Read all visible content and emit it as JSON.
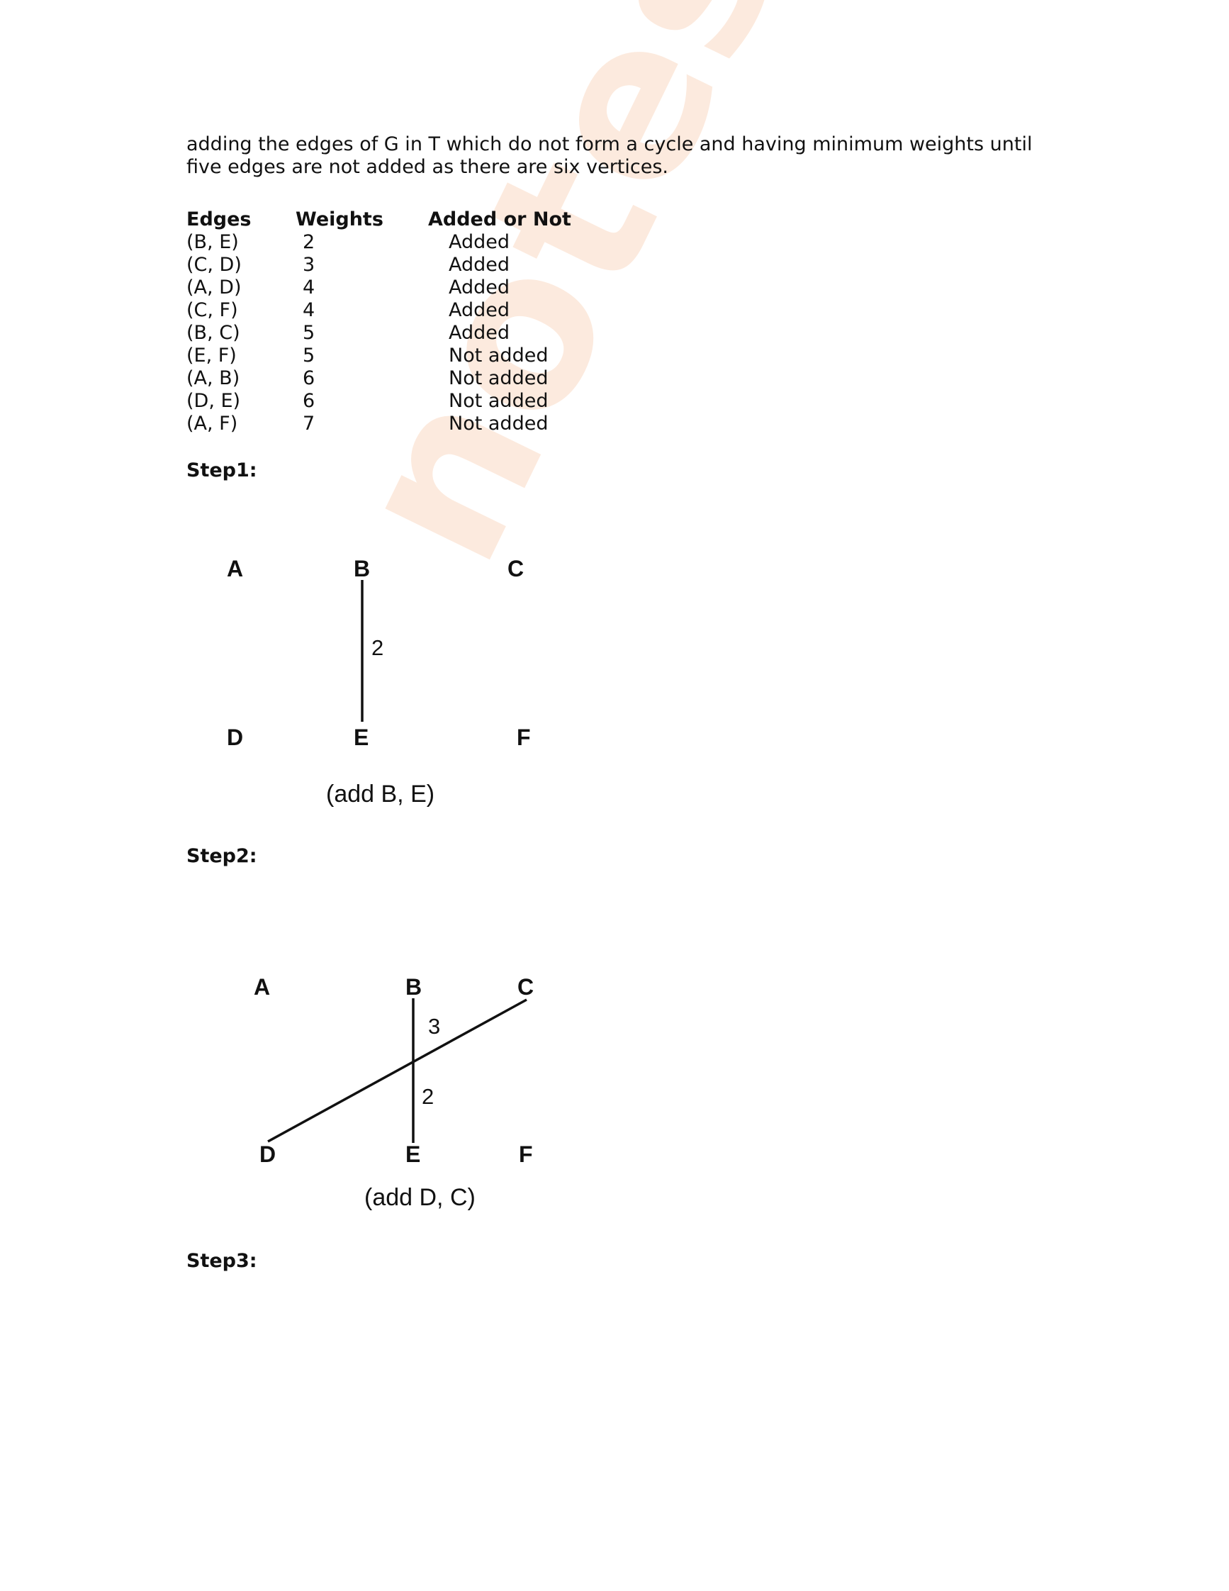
{
  "paragraph": "adding the edges of G in T which do not form a cycle and having minimum weights until five edges are not added as there are six vertices.",
  "table": {
    "headers": [
      "Edges",
      "Weights",
      "Added or Not"
    ],
    "rows": [
      [
        "(B, E)",
        "2",
        "Added"
      ],
      [
        "(C, D)",
        "3",
        "Added"
      ],
      [
        "(A, D)",
        "4",
        "Added"
      ],
      [
        "(C, F)",
        "4",
        "Added"
      ],
      [
        "(B, C)",
        "5",
        "Added"
      ],
      [
        "(E, F)",
        "5",
        "Not added"
      ],
      [
        "(A, B)",
        "6",
        "Not added"
      ],
      [
        "(D, E)",
        "6",
        "Not added"
      ],
      [
        "(A, F)",
        "7",
        "Not added"
      ]
    ]
  },
  "steps": [
    {
      "label": "Step1:",
      "nodes": [
        "A",
        "B",
        "C",
        "D",
        "E",
        "F"
      ],
      "edge_weights": [
        "2"
      ],
      "caption": "(add B, E)"
    },
    {
      "label": "Step2:",
      "nodes": [
        "A",
        "B",
        "C",
        "D",
        "E",
        "F"
      ],
      "edge_weights": [
        "3",
        "2"
      ],
      "caption": "(add D, C)"
    },
    {
      "label": "Step3:"
    }
  ],
  "colors": {
    "watermark": "#f6a46b",
    "ink": "#111111"
  }
}
